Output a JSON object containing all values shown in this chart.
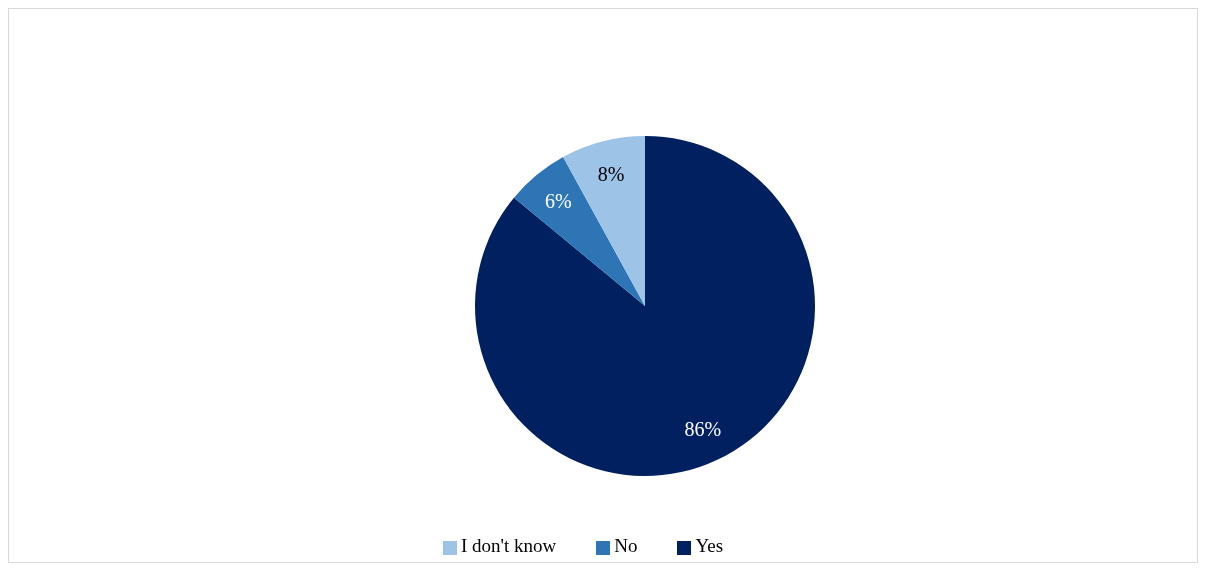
{
  "chart_data": {
    "type": "pie",
    "categories": [
      "Yes",
      "No",
      "I don't know"
    ],
    "values": [
      86,
      6,
      8
    ],
    "colors": [
      "#002060",
      "#2e75b6",
      "#9dc3e6"
    ],
    "value_labels": [
      "86%",
      "6%",
      "8%"
    ],
    "legend": "bottom"
  }
}
